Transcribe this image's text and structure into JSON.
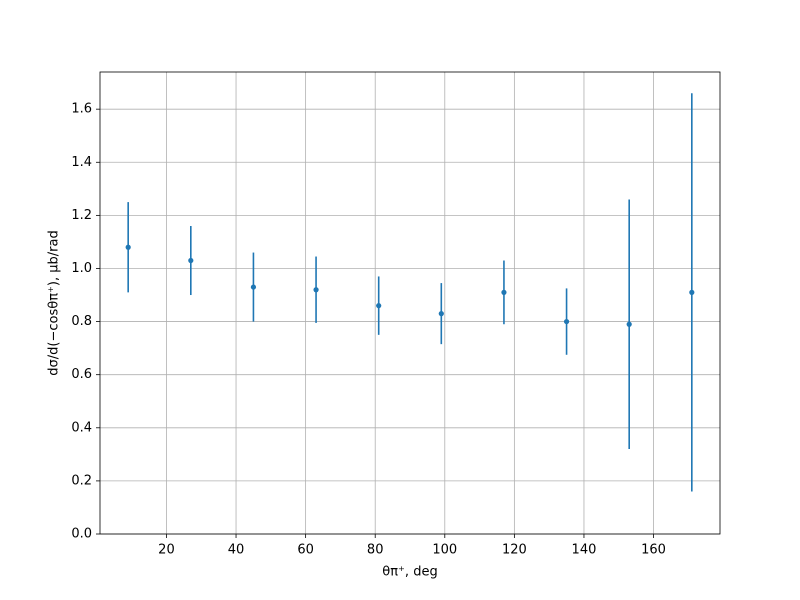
{
  "chart_data": {
    "type": "errorbar",
    "x_label": "θπ⁺, deg",
    "y_label": "dσ/d(−cosθπ⁺), μb/rad",
    "x": [
      9,
      27,
      45,
      63,
      81,
      99,
      117,
      135,
      153,
      171
    ],
    "series": [
      {
        "color": "#1f77b4",
        "values": [
          1.08,
          1.03,
          0.93,
          0.92,
          0.86,
          0.83,
          0.91,
          0.8,
          0.79,
          0.91
        ],
        "errors": [
          0.17,
          0.13,
          0.13,
          0.125,
          0.11,
          0.115,
          0.12,
          0.125,
          0.47,
          0.75
        ]
      }
    ],
    "xlim": [
      0.9,
      179.1
    ],
    "ylim": [
      0,
      1.74
    ],
    "xticks": [
      20,
      40,
      60,
      80,
      100,
      120,
      140,
      160
    ],
    "yticks": [
      {
        "value": 0,
        "label": "0.0"
      },
      0.2,
      0.4,
      0.6,
      0.8,
      {
        "value": 1,
        "label": "1.0"
      },
      1.2,
      1.4,
      1.6
    ],
    "grid": true
  }
}
